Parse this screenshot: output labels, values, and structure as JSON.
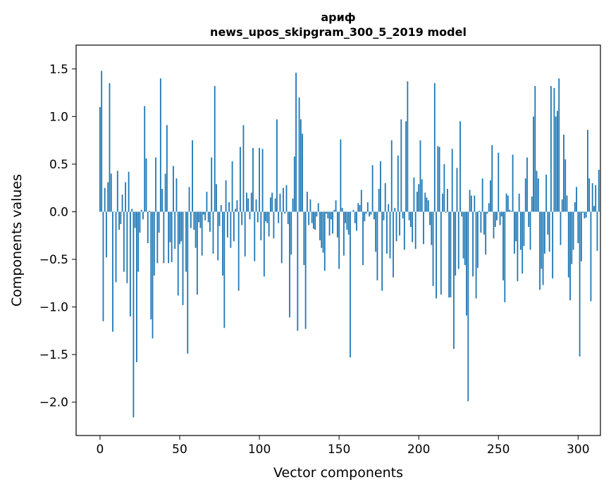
{
  "chart_data": {
    "type": "bar",
    "title": "ариф",
    "subtitle": "news_upos_skipgram_300_5_2019 model",
    "xlabel": "Vector components",
    "ylabel": "Components values",
    "xlim": [
      -15,
      314
    ],
    "ylim": [
      -2.35,
      1.75
    ],
    "x_ticks": [
      0,
      50,
      100,
      150,
      200,
      250,
      300
    ],
    "x_tick_labels": [
      "0",
      "50",
      "100",
      "150",
      "200",
      "250",
      "300"
    ],
    "y_ticks": [
      -2.0,
      -1.5,
      -1.0,
      -0.5,
      0.0,
      0.5,
      1.0,
      1.5
    ],
    "y_tick_labels": [
      "−2.0",
      "−1.5",
      "−1.0",
      "−0.5",
      "0.0",
      "0.5",
      "1.0",
      "1.5"
    ],
    "bar_color": "#1f77b4",
    "grid": false,
    "values": [
      1.1,
      1.48,
      -1.15,
      0.25,
      -0.48,
      0.31,
      1.35,
      0.4,
      -1.26,
      0.0,
      -0.74,
      0.43,
      -0.19,
      -0.13,
      0.18,
      -0.63,
      0.31,
      -0.75,
      0.42,
      -1.1,
      0.03,
      -2.16,
      -0.17,
      -1.58,
      -0.63,
      -0.22,
      0.02,
      -0.08,
      1.11,
      0.56,
      -0.33,
      0.01,
      -1.13,
      -1.33,
      -0.67,
      0.57,
      -0.54,
      -0.22,
      1.4,
      0.24,
      -0.54,
      0.4,
      0.91,
      -0.54,
      -0.32,
      -0.53,
      0.48,
      -0.39,
      0.35,
      -0.88,
      -0.34,
      -0.31,
      -0.98,
      0.0,
      -0.63,
      -1.49,
      0.26,
      -0.17,
      0.75,
      -0.19,
      -0.38,
      -0.87,
      -0.11,
      -0.17,
      -0.46,
      -0.03,
      -0.09,
      0.21,
      -0.11,
      -0.21,
      0.57,
      -0.44,
      1.32,
      0.29,
      -0.51,
      -0.15,
      0.07,
      -0.67,
      -1.22,
      0.33,
      -0.27,
      0.1,
      -0.38,
      0.53,
      -0.31,
      0.03,
      0.12,
      -0.83,
      0.68,
      -0.14,
      0.91,
      -0.47,
      0.2,
      0.14,
      -0.08,
      0.2,
      0.67,
      -0.52,
      0.13,
      -0.11,
      0.67,
      -0.3,
      0.66,
      -0.68,
      -0.1,
      -0.12,
      -0.26,
      0.15,
      0.2,
      -0.28,
      0.14,
      0.97,
      -0.12,
      0.19,
      -0.54,
      0.25,
      -0.02,
      0.28,
      -0.13,
      -1.11,
      -0.45,
      0.14,
      0.58,
      1.46,
      -1.25,
      1.2,
      0.97,
      0.82,
      -0.56,
      -1.23,
      0.21,
      -0.14,
      0.13,
      -0.12,
      -0.18,
      -0.19,
      -0.05,
      0.09,
      -0.3,
      -0.38,
      -0.43,
      -0.62,
      -0.02,
      -0.07,
      -0.25,
      -0.08,
      -0.23,
      0.02,
      0.12,
      -0.27,
      -0.6,
      0.76,
      0.04,
      -0.46,
      -0.12,
      -0.19,
      -0.24,
      -1.53,
      0.0,
      0.02,
      -0.12,
      -0.2,
      0.09,
      0.07,
      0.23,
      -0.56,
      -0.1,
      -0.02,
      0.1,
      -0.05,
      -0.03,
      0.49,
      -0.08,
      -0.42,
      -0.72,
      0.24,
      0.53,
      -0.83,
      -0.09,
      0.3,
      -0.44,
      0.08,
      -0.49,
      0.75,
      -0.69,
      0.04,
      -0.31,
      0.59,
      -0.25,
      0.97,
      -0.07,
      -0.4,
      0.95,
      1.37,
      -0.09,
      -0.16,
      -0.32,
      0.36,
      -0.39,
      0.21,
      0.29,
      0.75,
      0.34,
      -0.34,
      0.2,
      0.15,
      0.12,
      -0.14,
      -0.35,
      -0.78,
      1.35,
      -0.91,
      0.69,
      0.68,
      -0.87,
      0.19,
      0.5,
      -0.01,
      0.24,
      -0.9,
      -0.9,
      0.66,
      -1.44,
      -0.67,
      0.46,
      -0.6,
      0.95,
      -0.05,
      -0.49,
      -0.56,
      -1.09,
      -1.99,
      0.23,
      0.17,
      -0.68,
      0.17,
      -0.91,
      -0.59,
      0.01,
      -0.22,
      0.35,
      -0.24,
      -0.45,
      -0.02,
      0.09,
      0.33,
      0.7,
      -0.28,
      -0.16,
      -0.09,
      0.62,
      -0.14,
      -0.05,
      -0.72,
      -0.95,
      0.19,
      0.17,
      0.02,
      0.01,
      0.6,
      -0.44,
      -0.31,
      -0.73,
      0.19,
      -0.4,
      -0.65,
      -0.36,
      0.35,
      0.57,
      -0.16,
      -0.4,
      0.16,
      1.0,
      1.32,
      0.43,
      0.35,
      -0.82,
      -0.6,
      -0.77,
      -0.44,
      0.39,
      -0.24,
      -0.42,
      1.32,
      -0.7,
      1.3,
      1.0,
      1.06,
      1.4,
      -0.35,
      0.13,
      0.81,
      0.55,
      0.17,
      -0.69,
      -0.93,
      -0.55,
      -0.4,
      0.1,
      0.26,
      -0.33,
      -1.52,
      -0.52,
      -0.01,
      -0.07,
      -0.06,
      0.86,
      0.35,
      -0.94,
      0.3,
      0.06,
      0.28,
      -0.41,
      0.44
    ]
  }
}
